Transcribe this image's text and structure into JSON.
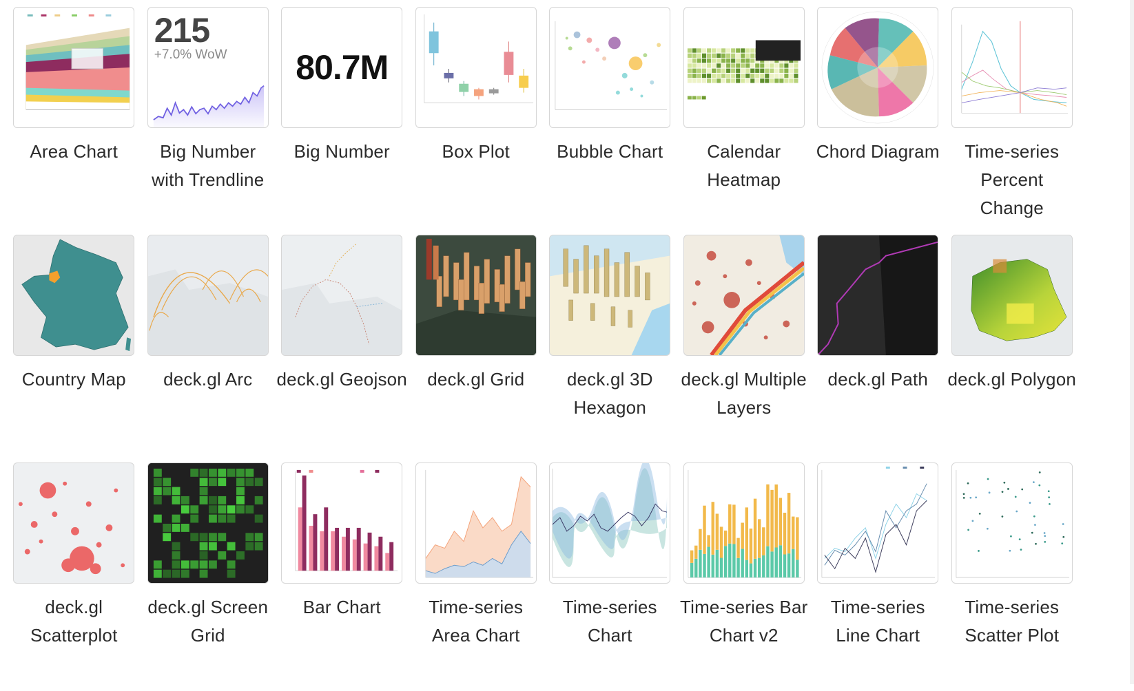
{
  "gallery": {
    "items": [
      {
        "label": "Area Chart"
      },
      {
        "label": "Big Number with Trendline"
      },
      {
        "label": "Big Number"
      },
      {
        "label": "Box Plot"
      },
      {
        "label": "Bubble Chart"
      },
      {
        "label": "Calendar Heatmap"
      },
      {
        "label": "Chord Diagram"
      },
      {
        "label": "Time-series Percent Change"
      },
      {
        "label": "Country Map"
      },
      {
        "label": "deck.gl Arc"
      },
      {
        "label": "deck.gl Geojson"
      },
      {
        "label": "deck.gl Grid"
      },
      {
        "label": "deck.gl 3D Hexagon"
      },
      {
        "label": "deck.gl Multiple Layers"
      },
      {
        "label": "deck.gl Path"
      },
      {
        "label": "deck.gl Polygon"
      },
      {
        "label": "deck.gl Scatterplot"
      },
      {
        "label": "deck.gl Screen Grid"
      },
      {
        "label": "Bar Chart"
      },
      {
        "label": "Time-series Area Chart"
      },
      {
        "label": "Time-series Chart"
      },
      {
        "label": "Time-series Bar Chart v2"
      },
      {
        "label": "Time-series Line Chart"
      },
      {
        "label": "Time-series Scatter Plot"
      }
    ]
  },
  "thumbnails": {
    "big_number_trendline": {
      "value": "215",
      "change": "+7.0% WoW"
    },
    "big_number": {
      "value": "80.7M"
    }
  }
}
